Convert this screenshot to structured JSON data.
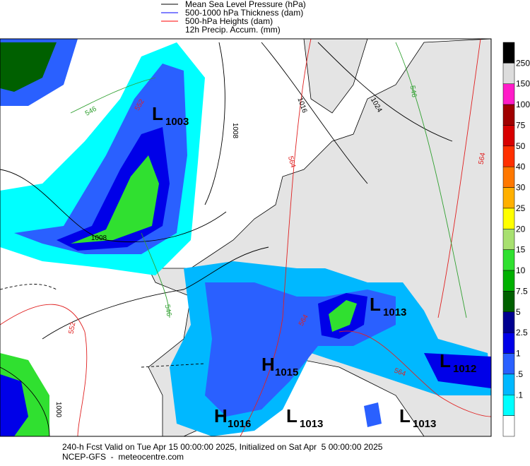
{
  "legend": [
    {
      "label": "Mean Sea Level Pressure (hPa)",
      "color": "#000000"
    },
    {
      "label": "500-1000 hPa Thickness (dam)",
      "color": "#0000ff"
    },
    {
      "label": "500-hPa Heights (dam)",
      "color": "#ff0000"
    },
    {
      "label": "12h Precip. Accum. (mm)",
      "color": null
    }
  ],
  "colorbar": {
    "labels": [
      "250",
      "150",
      "100",
      "75",
      "50",
      "40",
      "30",
      "25",
      "20",
      "15",
      "10",
      "7.5",
      "5",
      "2.5",
      "1",
      ".5",
      ".1"
    ],
    "colors": [
      "#000000",
      "#dcdcdc",
      "#ff1cc8",
      "#a00000",
      "#d80000",
      "#ff3000",
      "#ff7800",
      "#ffb000",
      "#ffff00",
      "#a8e070",
      "#30e030",
      "#00b000",
      "#006000",
      "#000090",
      "#0000e8",
      "#2a60ff",
      "#00b8ff",
      "#00ffff",
      "#ffffff"
    ]
  },
  "pressure_centers": [
    {
      "letter": "L",
      "value": "1003"
    },
    {
      "letter": "L",
      "value": "1013"
    },
    {
      "letter": "H",
      "value": "1015"
    },
    {
      "letter": "L",
      "value": "1012"
    },
    {
      "letter": "H",
      "value": "1016"
    },
    {
      "letter": "L",
      "value": "1013"
    },
    {
      "letter": "L",
      "value": "1013"
    }
  ],
  "contour_labels": [
    {
      "text": "1008",
      "color": "#000000"
    },
    {
      "text": "1008",
      "color": "#000000"
    },
    {
      "text": "1016",
      "color": "#000000"
    },
    {
      "text": "1024",
      "color": "#000000"
    },
    {
      "text": "1000",
      "color": "#000000"
    },
    {
      "text": "546",
      "color": "#30a030"
    },
    {
      "text": "546",
      "color": "#30a030"
    },
    {
      "text": "546",
      "color": "#30a030"
    },
    {
      "text": "552",
      "color": "#e02020"
    },
    {
      "text": "552",
      "color": "#e02020"
    },
    {
      "text": "564",
      "color": "#e02020"
    },
    {
      "text": "564",
      "color": "#e02020"
    },
    {
      "text": "564",
      "color": "#e02020"
    },
    {
      "text": "564",
      "color": "#e02020"
    }
  ],
  "footer": [
    "240-h Fcst Valid on Tue Apr 15 00:00:00 2025, Initialized on Sat Apr  5 00:00:00 2025",
    "NCEP-GFS  -  meteocentre.com"
  ]
}
